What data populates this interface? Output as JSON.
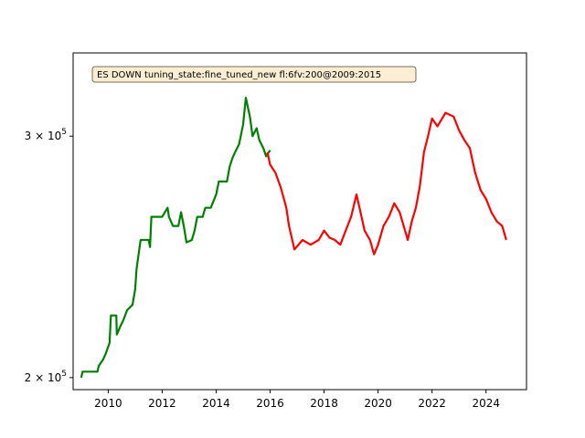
{
  "chart_data": {
    "type": "line",
    "yscale": "log",
    "xlim": [
      2008.7,
      2025.5
    ],
    "ylim": [
      196000,
      345000
    ],
    "grid": false,
    "annotation": "ES DOWN tuning_state:fine_tuned_new fl:6fv:200@2009:2015",
    "x_ticks": [
      {
        "value": 2010,
        "label": "2010"
      },
      {
        "value": 2012,
        "label": "2012"
      },
      {
        "value": 2014,
        "label": "2014"
      },
      {
        "value": 2016,
        "label": "2016"
      },
      {
        "value": 2018,
        "label": "2018"
      },
      {
        "value": 2020,
        "label": "2020"
      },
      {
        "value": 2022,
        "label": "2022"
      },
      {
        "value": 2024,
        "label": "2024"
      }
    ],
    "y_ticks": [
      {
        "value": 200000,
        "label": "2 × 10",
        "exp": "5"
      },
      {
        "value": 300000,
        "label": "3 × 10",
        "exp": "5"
      }
    ],
    "series": [
      {
        "color": "#008000",
        "points": [
          [
            2009.0,
            200000
          ],
          [
            2009.05,
            202000
          ],
          [
            2009.6,
            202000
          ],
          [
            2009.65,
            204000
          ],
          [
            2009.8,
            206000
          ],
          [
            2009.9,
            208000
          ],
          [
            2010.05,
            212000
          ],
          [
            2010.1,
            222000
          ],
          [
            2010.3,
            222000
          ],
          [
            2010.32,
            215000
          ],
          [
            2010.45,
            218000
          ],
          [
            2010.55,
            220000
          ],
          [
            2010.7,
            224000
          ],
          [
            2010.9,
            226000
          ],
          [
            2011.0,
            232000
          ],
          [
            2011.05,
            240000
          ],
          [
            2011.2,
            252000
          ],
          [
            2011.5,
            252000
          ],
          [
            2011.55,
            249000
          ],
          [
            2011.6,
            262000
          ],
          [
            2012.0,
            262000
          ],
          [
            2012.2,
            266000
          ],
          [
            2012.25,
            262000
          ],
          [
            2012.4,
            258000
          ],
          [
            2012.6,
            258000
          ],
          [
            2012.7,
            264000
          ],
          [
            2012.8,
            258000
          ],
          [
            2012.9,
            251000
          ],
          [
            2013.1,
            252000
          ],
          [
            2013.2,
            256000
          ],
          [
            2013.3,
            262000
          ],
          [
            2013.5,
            262000
          ],
          [
            2013.6,
            266000
          ],
          [
            2013.8,
            266000
          ],
          [
            2014.0,
            272000
          ],
          [
            2014.1,
            278000
          ],
          [
            2014.4,
            278000
          ],
          [
            2014.5,
            285000
          ],
          [
            2014.6,
            289000
          ],
          [
            2014.7,
            292000
          ],
          [
            2014.85,
            296000
          ],
          [
            2015.0,
            306000
          ],
          [
            2015.1,
            320000
          ],
          [
            2015.25,
            310000
          ],
          [
            2015.35,
            300000
          ],
          [
            2015.5,
            304000
          ],
          [
            2015.6,
            298000
          ],
          [
            2015.75,
            294000
          ],
          [
            2015.85,
            290000
          ],
          [
            2016.0,
            293000
          ]
        ]
      },
      {
        "color": "#ff0000",
        "points": [
          [
            2015.9,
            292000
          ],
          [
            2016.0,
            286000
          ],
          [
            2016.2,
            282000
          ],
          [
            2016.4,
            275000
          ],
          [
            2016.6,
            266000
          ],
          [
            2016.7,
            258000
          ],
          [
            2016.8,
            253000
          ],
          [
            2016.9,
            248000
          ],
          [
            2017.2,
            252000
          ],
          [
            2017.5,
            250000
          ],
          [
            2017.8,
            252000
          ],
          [
            2018.0,
            256000
          ],
          [
            2018.2,
            253000
          ],
          [
            2018.4,
            252000
          ],
          [
            2018.6,
            250000
          ],
          [
            2018.8,
            256000
          ],
          [
            2019.0,
            262000
          ],
          [
            2019.2,
            272000
          ],
          [
            2019.35,
            264000
          ],
          [
            2019.5,
            256000
          ],
          [
            2019.7,
            252000
          ],
          [
            2019.85,
            246000
          ],
          [
            2020.0,
            250000
          ],
          [
            2020.2,
            258000
          ],
          [
            2020.4,
            262000
          ],
          [
            2020.6,
            268000
          ],
          [
            2020.8,
            264000
          ],
          [
            2020.95,
            258000
          ],
          [
            2021.1,
            252000
          ],
          [
            2021.25,
            260000
          ],
          [
            2021.4,
            266000
          ],
          [
            2021.55,
            276000
          ],
          [
            2021.7,
            292000
          ],
          [
            2021.85,
            300000
          ],
          [
            2022.0,
            309000
          ],
          [
            2022.2,
            305000
          ],
          [
            2022.5,
            312000
          ],
          [
            2022.8,
            310000
          ],
          [
            2023.0,
            303000
          ],
          [
            2023.2,
            298000
          ],
          [
            2023.4,
            294000
          ],
          [
            2023.6,
            282000
          ],
          [
            2023.8,
            274000
          ],
          [
            2024.0,
            270000
          ],
          [
            2024.2,
            264000
          ],
          [
            2024.4,
            260000
          ],
          [
            2024.6,
            258000
          ],
          [
            2024.75,
            252000
          ]
        ]
      }
    ]
  }
}
